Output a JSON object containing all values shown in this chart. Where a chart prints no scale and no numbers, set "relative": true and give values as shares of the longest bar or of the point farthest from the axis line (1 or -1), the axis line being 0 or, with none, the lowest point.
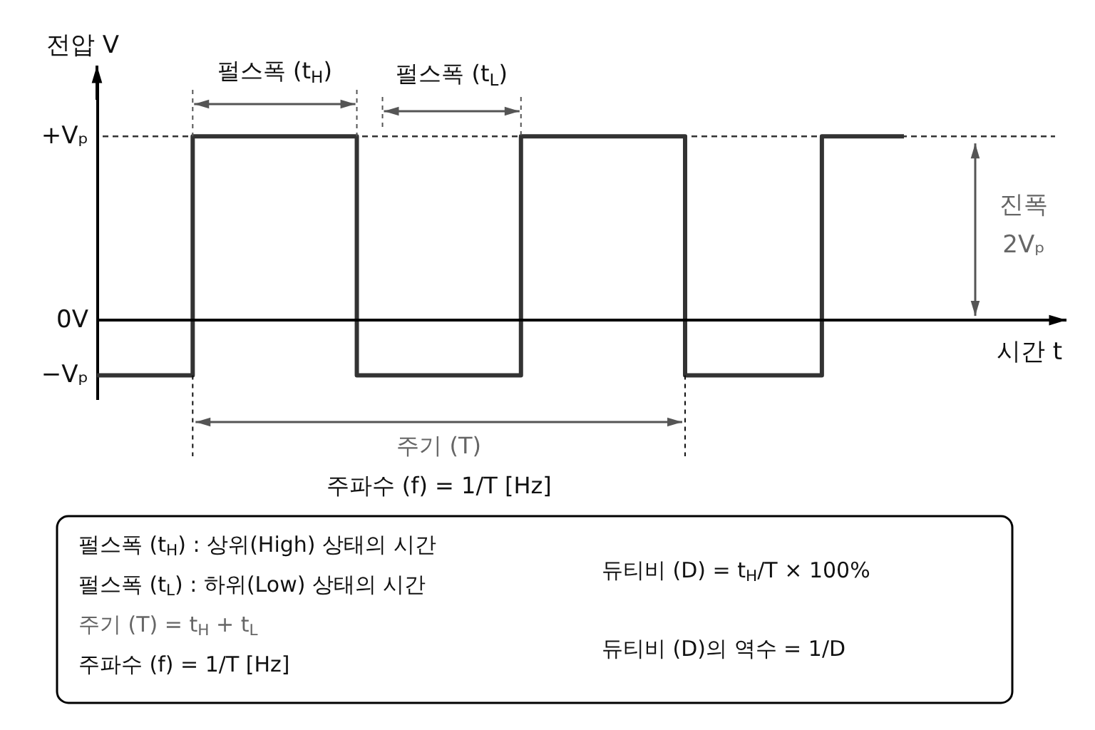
{
  "chart_data": {
    "type": "step",
    "relative": true,
    "xlabel": "시간 t",
    "ylabel": "전압 V",
    "categories": [
      null,
      null,
      null,
      null,
      null,
      null,
      null,
      null,
      null,
      null,
      null,
      null,
      null,
      null,
      null,
      null,
      null,
      null,
      null,
      null,
      null,
      null,
      null,
      null,
      null,
      null,
      null,
      null,
      null,
      null,
      null,
      null,
      null,
      null,
      null,
      null,
      null,
      null,
      null,
      null,
      null,
      null,
      null,
      null,
      null,
      null,
      null,
      null,
      null,
      null,
      null,
      null,
      null,
      null,
      null,
      null,
      null,
      null,
      null,
      null
    ],
    "series": [
      {
        "color": "#333333",
        "values": [
          -0.3,
          -0.3,
          -0.3,
          -0.3,
          -0.3,
          -0.3,
          -0.3,
          1,
          1,
          1,
          1,
          1,
          1,
          1,
          1,
          1,
          1,
          1,
          1,
          -0.3,
          -0.3,
          -0.3,
          -0.3,
          -0.3,
          -0.3,
          -0.3,
          -0.3,
          -0.3,
          -0.3,
          -0.3,
          -0.3,
          1,
          1,
          1,
          1,
          1,
          1,
          1,
          1,
          1,
          1,
          1,
          1,
          -0.3,
          -0.3,
          -0.3,
          -0.3,
          -0.3,
          -0.3,
          -0.3,
          -0.3,
          -0.3,
          -0.3,
          1,
          1,
          1,
          1,
          1,
          1,
          1
        ]
      }
    ],
    "ref_lines": [
      {
        "axis": "y",
        "value": 1,
        "color": "#333333",
        "line_style": "dashed"
      }
    ],
    "annotations": [
      "+Vₚ",
      "0V",
      "−Vₚ",
      "펄스폭 (t$_{H}$)",
      "펄스폭 (t$_{L}$)",
      "주기 (T)",
      "주파수 (f) = 1/T [Hz]",
      "진폭\n2Vₚ",
      "펄스폭 (t$_{H}$) : 상위(High) 상태의 시간",
      "펄스폭 (t$_{L}$) : 하위(Low) 상태의 시간",
      "주기 (T) = t$_{H}$ + t$_{L}$",
      "주파수 (f) = 1/T [Hz]",
      "듀티비 (D) = t$_{H}$/T × 100%",
      "듀티비 (D)의 역수 = 1/D"
    ]
  }
}
